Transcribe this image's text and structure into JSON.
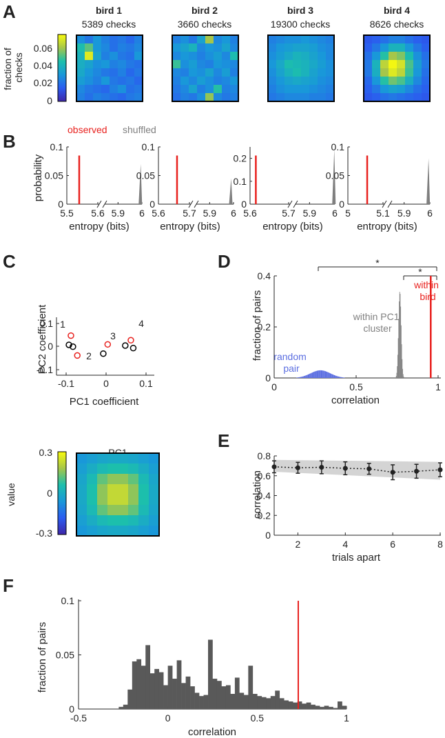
{
  "panel_letters": [
    "A",
    "B",
    "C",
    "D",
    "E",
    "F"
  ],
  "panel_a": {
    "colorbar_label_line1": "fraction of",
    "colorbar_label_line2": "checks",
    "colorbar_ticks": [
      "0.06",
      "0.04",
      "0.02",
      "0"
    ]
  },
  "panel_b": {
    "legend_observed": "observed",
    "legend_shuffled": "shuffled",
    "observed_color": "#e8201d",
    "shuffled_color": "#7f7f7f"
  },
  "panel_c": {
    "ylabel": "PC2 coefficient",
    "xlabel": "PC1 coefficient",
    "yticks": [
      "0.1",
      "0",
      "-0.1"
    ],
    "xticks": [
      "-0.1",
      "0",
      "0.1"
    ],
    "pc1_title": "PC1",
    "value_label": "value",
    "value_ticks": [
      "0.3",
      "0",
      "-0.3"
    ]
  },
  "panel_d": {
    "star_outer": "*",
    "star_inner": "*",
    "within_bird_line1": "within",
    "within_bird_line2": "bird",
    "within_pc1_line1": "within PC1",
    "within_pc1_line2": "cluster",
    "random_line1": "random",
    "random_line2": "pair",
    "random_color": "#5b6ee1",
    "within_bird_color": "#e8201d",
    "within_pc1_color": "#7f7f7f"
  },
  "chart_data": [
    {
      "panel": "A",
      "type": "heatmap",
      "subplots": [
        {
          "title": "bird 1",
          "subtitle": "5389 checks"
        },
        {
          "title": "bird 2",
          "subtitle": "3660 checks"
        },
        {
          "title": "bird 3",
          "subtitle": "19300 checks"
        },
        {
          "title": "bird 4",
          "subtitle": "8626 checks"
        }
      ],
      "grid_size": 8,
      "colorbar_range": [
        0,
        0.075
      ],
      "values": [
        [
          [
            0.028,
            0.022,
            0.03,
            0.024,
            0.02,
            0.022,
            0.018,
            0.024
          ],
          [
            0.044,
            0.052,
            0.03,
            0.026,
            0.02,
            0.024,
            0.022,
            0.026
          ],
          [
            0.04,
            0.07,
            0.034,
            0.024,
            0.028,
            0.022,
            0.02,
            0.03
          ],
          [
            0.038,
            0.034,
            0.028,
            0.03,
            0.024,
            0.026,
            0.022,
            0.02
          ],
          [
            0.036,
            0.03,
            0.026,
            0.022,
            0.02,
            0.024,
            0.018,
            0.022
          ],
          [
            0.032,
            0.028,
            0.024,
            0.03,
            0.022,
            0.02,
            0.022,
            0.018
          ],
          [
            0.026,
            0.022,
            0.02,
            0.018,
            0.024,
            0.028,
            0.02,
            0.022
          ],
          [
            0.024,
            0.02,
            0.024,
            0.022,
            0.02,
            0.018,
            0.022,
            0.024
          ]
        ],
        [
          [
            0.024,
            0.028,
            0.022,
            0.034,
            0.06,
            0.026,
            0.03,
            0.024
          ],
          [
            0.03,
            0.034,
            0.04,
            0.026,
            0.03,
            0.028,
            0.034,
            0.026
          ],
          [
            0.026,
            0.03,
            0.028,
            0.024,
            0.028,
            0.032,
            0.026,
            0.044
          ],
          [
            0.048,
            0.028,
            0.032,
            0.026,
            0.024,
            0.03,
            0.028,
            0.026
          ],
          [
            0.026,
            0.024,
            0.03,
            0.028,
            0.034,
            0.026,
            0.032,
            0.024
          ],
          [
            0.024,
            0.03,
            0.026,
            0.032,
            0.028,
            0.024,
            0.026,
            0.03
          ],
          [
            0.022,
            0.026,
            0.034,
            0.024,
            0.028,
            0.046,
            0.024,
            0.026
          ],
          [
            0.02,
            0.024,
            0.022,
            0.028,
            0.058,
            0.026,
            0.022,
            0.024
          ]
        ],
        [
          [
            0.024,
            0.026,
            0.028,
            0.028,
            0.03,
            0.028,
            0.026,
            0.024
          ],
          [
            0.026,
            0.03,
            0.032,
            0.034,
            0.034,
            0.032,
            0.028,
            0.026
          ],
          [
            0.028,
            0.032,
            0.036,
            0.04,
            0.038,
            0.034,
            0.03,
            0.026
          ],
          [
            0.03,
            0.036,
            0.044,
            0.042,
            0.04,
            0.036,
            0.032,
            0.028
          ],
          [
            0.028,
            0.034,
            0.04,
            0.044,
            0.04,
            0.034,
            0.03,
            0.028
          ],
          [
            0.026,
            0.03,
            0.034,
            0.036,
            0.034,
            0.032,
            0.028,
            0.026
          ],
          [
            0.024,
            0.028,
            0.03,
            0.03,
            0.03,
            0.028,
            0.026,
            0.024
          ],
          [
            0.022,
            0.024,
            0.026,
            0.026,
            0.026,
            0.024,
            0.024,
            0.022
          ]
        ],
        [
          [
            0.014,
            0.016,
            0.02,
            0.024,
            0.024,
            0.02,
            0.016,
            0.014
          ],
          [
            0.016,
            0.022,
            0.03,
            0.04,
            0.04,
            0.03,
            0.022,
            0.016
          ],
          [
            0.02,
            0.03,
            0.046,
            0.06,
            0.056,
            0.044,
            0.028,
            0.02
          ],
          [
            0.022,
            0.04,
            0.064,
            0.074,
            0.068,
            0.05,
            0.032,
            0.022
          ],
          [
            0.022,
            0.038,
            0.06,
            0.07,
            0.064,
            0.048,
            0.03,
            0.02
          ],
          [
            0.018,
            0.03,
            0.046,
            0.054,
            0.05,
            0.038,
            0.026,
            0.018
          ],
          [
            0.016,
            0.022,
            0.03,
            0.034,
            0.032,
            0.026,
            0.02,
            0.016
          ],
          [
            0.014,
            0.016,
            0.02,
            0.022,
            0.02,
            0.018,
            0.016,
            0.014
          ]
        ]
      ]
    },
    {
      "panel": "B",
      "type": "bar",
      "xlabel": "entropy (bits)",
      "ylabel": "probability",
      "subplots": [
        {
          "ylim": [
            0,
            0.1
          ],
          "yticks": [
            "0.1",
            "0.05",
            "0"
          ],
          "xticks_left": [
            "5.5",
            "5.6"
          ],
          "xticks_right": [
            "5.9",
            "6"
          ],
          "xlim_left": [
            5.5,
            5.6
          ],
          "xlim_right": [
            5.85,
            6.0
          ],
          "observed": 5.54,
          "shuffled_peak_x": 5.995,
          "shuffled_peak_y": 0.07
        },
        {
          "ylim": [
            0,
            0.1
          ],
          "yticks": [
            "0.1",
            "0.05",
            "0"
          ],
          "xticks_left": [
            "5.6",
            "5.7"
          ],
          "xticks_right": [
            "5.9",
            "6"
          ],
          "xlim_left": [
            5.6,
            5.7
          ],
          "xlim_right": [
            5.85,
            6.0
          ],
          "observed": 5.66,
          "shuffled_peak_x": 5.99,
          "shuffled_peak_y": 0.045
        },
        {
          "ylim": [
            0,
            0.25
          ],
          "yticks": [
            "0.2",
            "0.1",
            "0"
          ],
          "xticks_left": [
            "5.6",
            "5.7"
          ],
          "xticks_right": [
            "5.9",
            "6"
          ],
          "xlim_left": [
            5.6,
            5.7
          ],
          "xlim_right": [
            5.85,
            6.0
          ],
          "observed": 5.615,
          "shuffled_peak_x": 5.998,
          "shuffled_peak_y": 0.24
        },
        {
          "ylim": [
            0,
            0.1
          ],
          "yticks": [
            "0.1",
            "0.05",
            "0"
          ],
          "xticks_left": [
            "5",
            "5.1"
          ],
          "xticks_right": [
            "5.9",
            "6"
          ],
          "xlim_left": [
            5.0,
            5.1
          ],
          "xlim_right": [
            5.85,
            6.0
          ],
          "observed": 5.055,
          "shuffled_peak_x": 5.995,
          "shuffled_peak_y": 0.08
        }
      ]
    },
    {
      "panel": "C",
      "type": "scatter",
      "xlabel": "PC1 coefficient",
      "ylabel": "PC2 coefficient",
      "xlim": [
        -0.12,
        0.12
      ],
      "ylim": [
        -0.12,
        0.12
      ],
      "points": [
        {
          "label": "1",
          "shuffled": [
            -0.093,
            0.006
          ],
          "observed": [
            -0.088,
            0.046
          ]
        },
        {
          "label": "2",
          "shuffled": [
            -0.083,
            -0.002
          ],
          "observed": [
            -0.072,
            -0.04
          ]
        },
        {
          "label": "3",
          "shuffled": [
            -0.007,
            -0.032
          ],
          "observed": [
            0.004,
            0.008
          ]
        },
        {
          "label": "4",
          "shuffled": [
            0.048,
            0.003
          ],
          "observed": [
            0.062,
            0.026
          ]
        }
      ],
      "extra_black_point": [
        0.068,
        -0.008
      ]
    },
    {
      "panel": "C-PC1",
      "type": "heatmap",
      "title": "PC1",
      "colorbar_range": [
        -0.3,
        0.3
      ],
      "grid_size": 8,
      "values": [
        [
          -0.06,
          -0.04,
          -0.02,
          -0.01,
          -0.01,
          -0.02,
          -0.04,
          -0.06
        ],
        [
          -0.04,
          0.0,
          0.04,
          0.06,
          0.06,
          0.04,
          0.0,
          -0.04
        ],
        [
          -0.02,
          0.04,
          0.12,
          0.16,
          0.16,
          0.12,
          0.04,
          -0.02
        ],
        [
          -0.01,
          0.06,
          0.16,
          0.22,
          0.22,
          0.16,
          0.06,
          -0.01
        ],
        [
          -0.01,
          0.06,
          0.16,
          0.22,
          0.22,
          0.16,
          0.06,
          -0.01
        ],
        [
          -0.02,
          0.04,
          0.12,
          0.16,
          0.16,
          0.12,
          0.04,
          -0.02
        ],
        [
          -0.04,
          0.0,
          0.04,
          0.06,
          0.06,
          0.04,
          0.0,
          -0.04
        ],
        [
          -0.06,
          -0.04,
          -0.02,
          -0.01,
          -0.01,
          -0.02,
          -0.04,
          -0.06
        ]
      ]
    },
    {
      "panel": "D",
      "type": "bar",
      "xlabel": "correlation",
      "ylabel": "fraction of pairs",
      "xlim": [
        0,
        1
      ],
      "ylim": [
        0,
        0.4
      ],
      "xticks": [
        "0",
        "0.5",
        "1"
      ],
      "yticks": [
        "0.4",
        "0.2",
        "0"
      ],
      "series": [
        {
          "name": "random pair",
          "center": 0.28,
          "spread": 0.06,
          "peak": 0.03
        },
        {
          "name": "within PC1 cluster",
          "center": 0.765,
          "spread": 0.008,
          "peak": 0.34
        },
        {
          "name": "within bird",
          "value": 0.955,
          "peak": 0.4
        }
      ]
    },
    {
      "panel": "E",
      "type": "line",
      "xlabel": "trials apart",
      "ylabel": "correlation",
      "xlim": [
        1,
        8
      ],
      "ylim": [
        0,
        0.8
      ],
      "xticks": [
        "2",
        "4",
        "6",
        "8"
      ],
      "yticks": [
        "0.8",
        "0.6",
        "0.4",
        "0.2",
        "0"
      ],
      "x": [
        1,
        2,
        3,
        4,
        5,
        6,
        7,
        8
      ],
      "values": [
        0.69,
        0.68,
        0.685,
        0.675,
        0.67,
        0.635,
        0.645,
        0.66
      ],
      "errors": [
        0.06,
        0.055,
        0.065,
        0.065,
        0.055,
        0.075,
        0.07,
        0.07
      ],
      "band": {
        "lower_start": 0.64,
        "upper_start": 0.76,
        "lower_end": 0.56,
        "upper_end": 0.74
      }
    },
    {
      "panel": "F",
      "type": "bar",
      "xlabel": "correlation",
      "ylabel": "fraction of pairs",
      "xlim": [
        -0.5,
        1
      ],
      "ylim": [
        0,
        0.1
      ],
      "xticks": [
        "-0.5",
        "0",
        "0.5",
        "1"
      ],
      "yticks": [
        "0.1",
        "0.05",
        "0"
      ],
      "bin_width": 0.025,
      "bin_start": -0.275,
      "values": [
        0.002,
        0.004,
        0.018,
        0.044,
        0.046,
        0.04,
        0.059,
        0.033,
        0.037,
        0.034,
        0.022,
        0.04,
        0.028,
        0.045,
        0.024,
        0.03,
        0.021,
        0.015,
        0.012,
        0.013,
        0.064,
        0.028,
        0.026,
        0.021,
        0.022,
        0.014,
        0.029,
        0.015,
        0.013,
        0.04,
        0.014,
        0.012,
        0.011,
        0.01,
        0.012,
        0.017,
        0.01,
        0.008,
        0.007,
        0.006,
        0.007,
        0.005,
        0.006,
        0.004,
        0.003,
        0.002,
        0.003,
        0.002,
        0.001,
        0.007,
        0.003
      ],
      "observed_line": 0.73
    }
  ]
}
